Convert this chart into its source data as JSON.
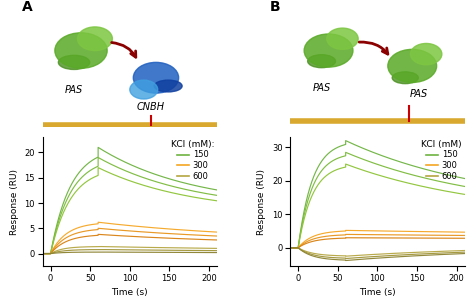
{
  "panel_A": {
    "title": "A",
    "xlabel": "Time (s)",
    "ylabel": "Response (RU)",
    "xlim": [
      -10,
      210
    ],
    "ylim": [
      -2.5,
      23
    ],
    "yticks": [
      0,
      5,
      10,
      15,
      20
    ],
    "xticks": [
      0,
      50,
      100,
      150,
      200
    ],
    "legend_title": "KCl (mM):",
    "legend_entries": [
      "150",
      "300",
      "600"
    ],
    "injection_time": 60,
    "series": [
      {
        "color": "#6db33f",
        "label": "150",
        "baseline": 0.0,
        "peak": 21.0,
        "dissoc_end": 9.2,
        "tau_assoc": 25,
        "tau_dissoc": 120
      },
      {
        "color": "#7aba3a",
        "label": "150",
        "baseline": 0.0,
        "peak": 19.0,
        "dissoc_end": 8.5,
        "tau_assoc": 25,
        "tau_dissoc": 120
      },
      {
        "color": "#8dc435",
        "label": "150",
        "baseline": 0.0,
        "peak": 17.0,
        "dissoc_end": 7.8,
        "tau_assoc": 25,
        "tau_dissoc": 120
      },
      {
        "color": "#f5a623",
        "label": "300",
        "baseline": 0.0,
        "peak": 6.2,
        "dissoc_end": 2.5,
        "tau_assoc": 20,
        "tau_dissoc": 200
      },
      {
        "color": "#e8941a",
        "label": "300",
        "baseline": 0.0,
        "peak": 5.0,
        "dissoc_end": 2.1,
        "tau_assoc": 20,
        "tau_dissoc": 200
      },
      {
        "color": "#d88010",
        "label": "300",
        "baseline": 0.0,
        "peak": 3.8,
        "dissoc_end": 1.7,
        "tau_assoc": 20,
        "tau_dissoc": 200
      },
      {
        "color": "#b5a642",
        "label": "600",
        "baseline": 0.0,
        "peak": 1.4,
        "dissoc_end": 0.45,
        "tau_assoc": 15,
        "tau_dissoc": 300
      },
      {
        "color": "#a09438",
        "label": "600",
        "baseline": 0.0,
        "peak": 0.8,
        "dissoc_end": 0.25,
        "tau_assoc": 15,
        "tau_dissoc": 300
      },
      {
        "color": "#8c8230",
        "label": "600",
        "baseline": 0.0,
        "peak": 0.3,
        "dissoc_end": 0.05,
        "tau_assoc": 15,
        "tau_dissoc": 300
      }
    ]
  },
  "panel_B": {
    "title": "B",
    "xlabel": "Time (s)",
    "ylabel": "Response (RU)",
    "xlim": [
      -10,
      210
    ],
    "ylim": [
      -5.5,
      33
    ],
    "yticks": [
      0,
      10,
      20,
      30
    ],
    "xticks": [
      0,
      50,
      100,
      150,
      200
    ],
    "legend_title": "KCl (mM)",
    "legend_entries": [
      "150",
      "300",
      "600"
    ],
    "injection_time": 60,
    "series": [
      {
        "color": "#6db33f",
        "label": "150",
        "baseline": 0.0,
        "peak": 32.0,
        "dissoc_end": 12.0,
        "tau_assoc": 18,
        "tau_dissoc": 180
      },
      {
        "color": "#7aba3a",
        "label": "150",
        "baseline": 0.0,
        "peak": 28.5,
        "dissoc_end": 10.5,
        "tau_assoc": 18,
        "tau_dissoc": 180
      },
      {
        "color": "#8dc435",
        "label": "150",
        "baseline": 0.0,
        "peak": 25.0,
        "dissoc_end": 9.0,
        "tau_assoc": 18,
        "tau_dissoc": 180
      },
      {
        "color": "#f5a623",
        "label": "300",
        "baseline": 0.0,
        "peak": 5.2,
        "dissoc_end": 3.5,
        "tau_assoc": 18,
        "tau_dissoc": 400
      },
      {
        "color": "#e8941a",
        "label": "300",
        "baseline": 0.0,
        "peak": 4.0,
        "dissoc_end": 3.0,
        "tau_assoc": 18,
        "tau_dissoc": 400
      },
      {
        "color": "#d88010",
        "label": "300",
        "baseline": 0.0,
        "peak": 3.0,
        "dissoc_end": 2.5,
        "tau_assoc": 18,
        "tau_dissoc": 400
      },
      {
        "color": "#b5a642",
        "label": "600",
        "baseline": 0.0,
        "peak": -2.5,
        "dissoc_end": 0.7,
        "tau_assoc": 18,
        "tau_dissoc": 200
      },
      {
        "color": "#a09438",
        "label": "600",
        "baseline": 0.0,
        "peak": -3.2,
        "dissoc_end": 0.4,
        "tau_assoc": 18,
        "tau_dissoc": 200
      },
      {
        "color": "#8c8230",
        "label": "600",
        "baseline": 0.0,
        "peak": -3.8,
        "dissoc_end": 0.15,
        "tau_assoc": 18,
        "tau_dissoc": 200
      }
    ]
  }
}
